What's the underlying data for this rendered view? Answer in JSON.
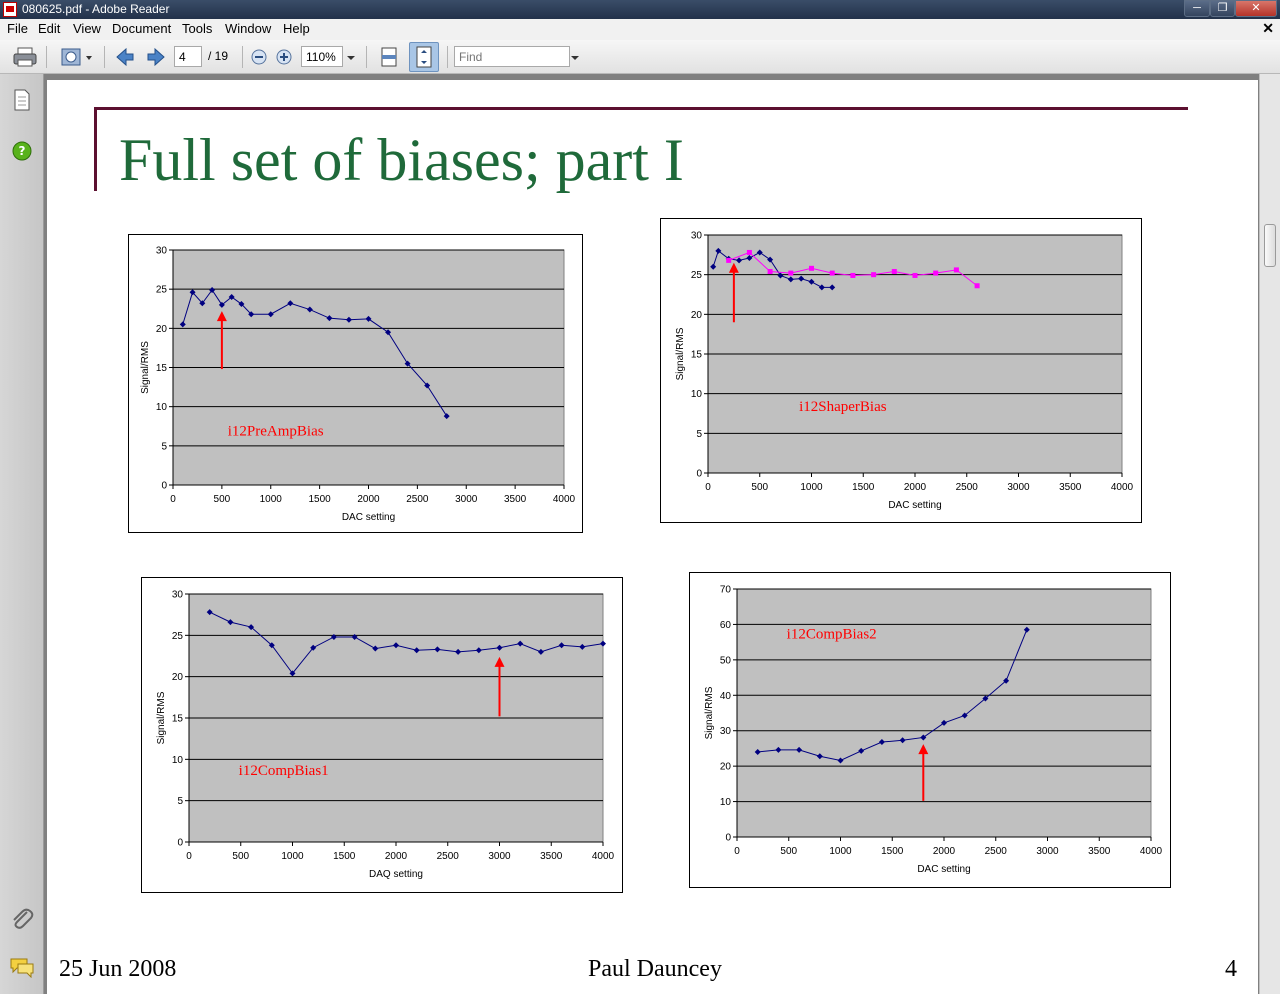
{
  "window": {
    "title": "080625.pdf - Adobe Reader"
  },
  "menu": {
    "items": [
      "File",
      "Edit",
      "View",
      "Document",
      "Tools",
      "Window",
      "Help"
    ]
  },
  "toolbar": {
    "page_current": "4",
    "page_total": "/ 19",
    "zoom": "110%",
    "find_placeholder": "Find"
  },
  "slide": {
    "title": "Full set of biases; part I",
    "footer_date": "25 Jun 2008",
    "footer_author": "Paul Dauncey",
    "footer_page": "4"
  },
  "colors": {
    "series_navy": "#000080",
    "series_magenta": "#ff00ff",
    "arrow": "#ff0000",
    "plot_bg": "#c0c0c0",
    "title_green": "#1f6a3a"
  },
  "chart_data": [
    {
      "type": "line",
      "annotation": "i12PreAmpBias",
      "xlabel": "DAC setting",
      "ylabel": "Signal/RMS",
      "xlim": [
        0,
        4000
      ],
      "ylim": [
        0,
        30
      ],
      "xticks": [
        0,
        500,
        1000,
        1500,
        2000,
        2500,
        3000,
        3500,
        4000
      ],
      "yticks": [
        0,
        5,
        10,
        15,
        20,
        25,
        30
      ],
      "grid": true,
      "arrow": {
        "x": 500,
        "y_from": 14.8,
        "y_to": 22.2
      },
      "series": [
        {
          "color": "#000080",
          "marker": "diamond",
          "x": [
            100,
            200,
            300,
            400,
            500,
            600,
            700,
            800,
            1000,
            1200,
            1400,
            1600,
            1800,
            2000,
            2200,
            2400,
            2600,
            2800
          ],
          "y": [
            20.5,
            24.6,
            23.2,
            24.9,
            23.0,
            24.0,
            23.1,
            21.8,
            21.8,
            23.2,
            22.4,
            21.3,
            21.1,
            21.2,
            19.5,
            15.5,
            12.7,
            8.8
          ]
        }
      ]
    },
    {
      "type": "line",
      "annotation": "i12ShaperBias",
      "xlabel": "DAC setting",
      "ylabel": "Signal/RMS",
      "xlim": [
        0,
        4000
      ],
      "ylim": [
        0,
        30
      ],
      "xticks": [
        0,
        500,
        1000,
        1500,
        2000,
        2500,
        3000,
        3500,
        4000
      ],
      "yticks": [
        0,
        5,
        10,
        15,
        20,
        25,
        30
      ],
      "grid": true,
      "arrow": {
        "x": 250,
        "y_from": 19.0,
        "y_to": 26.5
      },
      "series": [
        {
          "color": "#000080",
          "marker": "diamond",
          "x": [
            50,
            100,
            200,
            300,
            400,
            500,
            600,
            700,
            800,
            900,
            1000,
            1100,
            1200
          ],
          "y": [
            26.0,
            28.0,
            27.0,
            26.8,
            27.1,
            27.8,
            26.9,
            24.9,
            24.4,
            24.5,
            24.1,
            23.4,
            23.4
          ]
        },
        {
          "color": "#ff00ff",
          "marker": "square",
          "x": [
            200,
            400,
            600,
            800,
            1000,
            1200,
            1400,
            1600,
            1800,
            2000,
            2200,
            2400,
            2600
          ],
          "y": [
            26.8,
            27.8,
            25.4,
            25.2,
            25.8,
            25.2,
            24.9,
            25.0,
            25.4,
            24.9,
            25.2,
            25.6,
            23.6
          ]
        }
      ]
    },
    {
      "type": "line",
      "annotation": "i12CompBias1",
      "xlabel": "DAQ setting",
      "ylabel": "Signal/RMS",
      "xlim": [
        0,
        4000
      ],
      "ylim": [
        0,
        30
      ],
      "xticks": [
        0,
        500,
        1000,
        1500,
        2000,
        2500,
        3000,
        3500,
        4000
      ],
      "yticks": [
        0,
        5,
        10,
        15,
        20,
        25,
        30
      ],
      "grid": true,
      "arrow": {
        "x": 3000,
        "y_from": 15.2,
        "y_to": 22.4
      },
      "series": [
        {
          "color": "#000080",
          "marker": "diamond",
          "x": [
            200,
            400,
            600,
            800,
            1000,
            1200,
            1400,
            1600,
            1800,
            2000,
            2200,
            2400,
            2600,
            2800,
            3000,
            3200,
            3400,
            3600,
            3800,
            4000
          ],
          "y": [
            27.8,
            26.6,
            26.0,
            23.8,
            20.4,
            23.5,
            24.8,
            24.8,
            23.4,
            23.8,
            23.2,
            23.3,
            23.0,
            23.2,
            23.5,
            24.0,
            23.0,
            23.8,
            23.6,
            24.0
          ]
        }
      ]
    },
    {
      "type": "line",
      "annotation": "i12CompBias2",
      "xlabel": "DAC setting",
      "ylabel": "Signal/RMS",
      "xlim": [
        0,
        4000
      ],
      "ylim": [
        0,
        70
      ],
      "xticks": [
        0,
        500,
        1000,
        1500,
        2000,
        2500,
        3000,
        3500,
        4000
      ],
      "yticks": [
        0,
        10,
        20,
        30,
        40,
        50,
        60,
        70
      ],
      "grid": true,
      "arrow": {
        "x": 1800,
        "y_from": 10.2,
        "y_to": 26.2
      },
      "series": [
        {
          "color": "#000080",
          "marker": "diamond",
          "x": [
            200,
            400,
            600,
            800,
            1000,
            1200,
            1400,
            1600,
            1800,
            2000,
            2200,
            2400,
            2600,
            2800
          ],
          "y": [
            24.0,
            24.6,
            24.6,
            22.8,
            21.6,
            24.3,
            26.8,
            27.3,
            28.1,
            32.2,
            34.3,
            39.1,
            44.1,
            58.5
          ]
        }
      ]
    }
  ]
}
